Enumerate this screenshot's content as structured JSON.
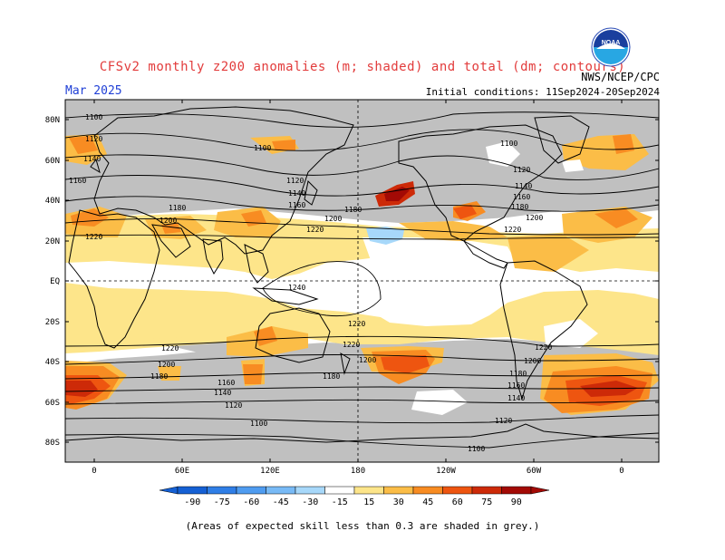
{
  "header": {
    "title": "CFSv2 monthly z200 anomalies (m; shaded) and total (dm; contours)",
    "month": "Mar 2025",
    "agency": "NWS/NCEP/CPC",
    "initial_conditions": "Initial conditions: 11Sep2024-20Sep2024"
  },
  "logo": {
    "text": "NOAA"
  },
  "map": {
    "lat_labels": [
      "80N",
      "60N",
      "40N",
      "20N",
      "EQ",
      "20S",
      "40S",
      "60S",
      "80S"
    ],
    "lon_labels": [
      "0",
      "60E",
      "120E",
      "180",
      "120W",
      "60W",
      "0"
    ],
    "contour_labels": [
      "1100",
      "1120",
      "1140",
      "1160",
      "1180",
      "1200",
      "1220",
      "1240"
    ],
    "colors": {
      "skill_grey": "#c0c0c0",
      "land": "#000000",
      "contour": "#000000"
    }
  },
  "colorbar": {
    "ticks": [
      "-90",
      "-75",
      "-60",
      "-45",
      "-30",
      "-15",
      "15",
      "30",
      "45",
      "60",
      "75",
      "90"
    ],
    "colors": [
      "#1560d4",
      "#2f7ee6",
      "#4f9cf0",
      "#78baf6",
      "#a7d8fa",
      "#ffffff",
      "#fde58a",
      "#fbbd47",
      "#f88c22",
      "#ee5510",
      "#cd2a08",
      "#a30a05"
    ]
  },
  "footer": {
    "note": "(Areas of expected skill less than 0.3 are shaded in grey.)"
  }
}
